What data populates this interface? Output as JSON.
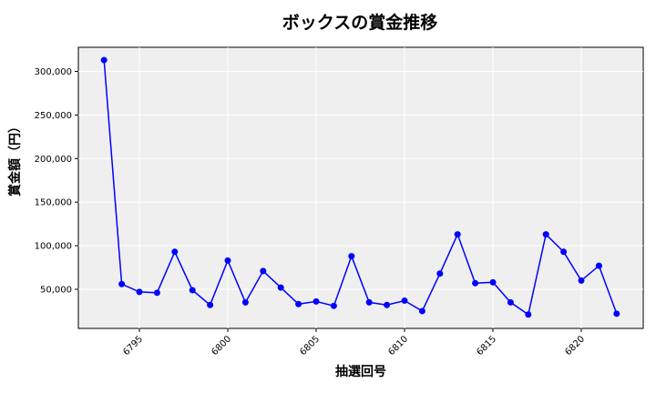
{
  "chart_data": {
    "type": "line",
    "title": "ボックスの賞金推移",
    "xlabel": "抽選回号",
    "ylabel": "賞金額（円）",
    "x": [
      6793,
      6794,
      6795,
      6796,
      6797,
      6798,
      6799,
      6800,
      6801,
      6802,
      6803,
      6804,
      6805,
      6806,
      6807,
      6808,
      6809,
      6810,
      6811,
      6812,
      6813,
      6814,
      6815,
      6816,
      6817,
      6818,
      6819,
      6820,
      6821,
      6822
    ],
    "series": [
      {
        "name": "ボックス",
        "color": "#0000ff",
        "values": [
          313000,
          56000,
          47000,
          46000,
          93000,
          49000,
          32000,
          83000,
          35000,
          71000,
          52000,
          33000,
          36000,
          31000,
          88000,
          35000,
          32000,
          37000,
          25000,
          68000,
          113000,
          57000,
          58000,
          35000,
          21000,
          113000,
          93000,
          60000,
          77000,
          22000
        ]
      }
    ],
    "xticks": [
      6795,
      6800,
      6805,
      6810,
      6815,
      6820
    ],
    "yticks": [
      50000,
      100000,
      150000,
      200000,
      250000,
      300000
    ],
    "ytick_labels": [
      "50,000",
      "100,000",
      "150,000",
      "200,000",
      "250,000",
      "300,000"
    ],
    "xlim": [
      6791.3,
      6823.5
    ],
    "ylim": [
      5000,
      326000
    ],
    "grid": true,
    "legend": null
  },
  "colors": {
    "line": "#0000ff",
    "plot_bg": "#efefef",
    "grid": "#ffffff"
  }
}
